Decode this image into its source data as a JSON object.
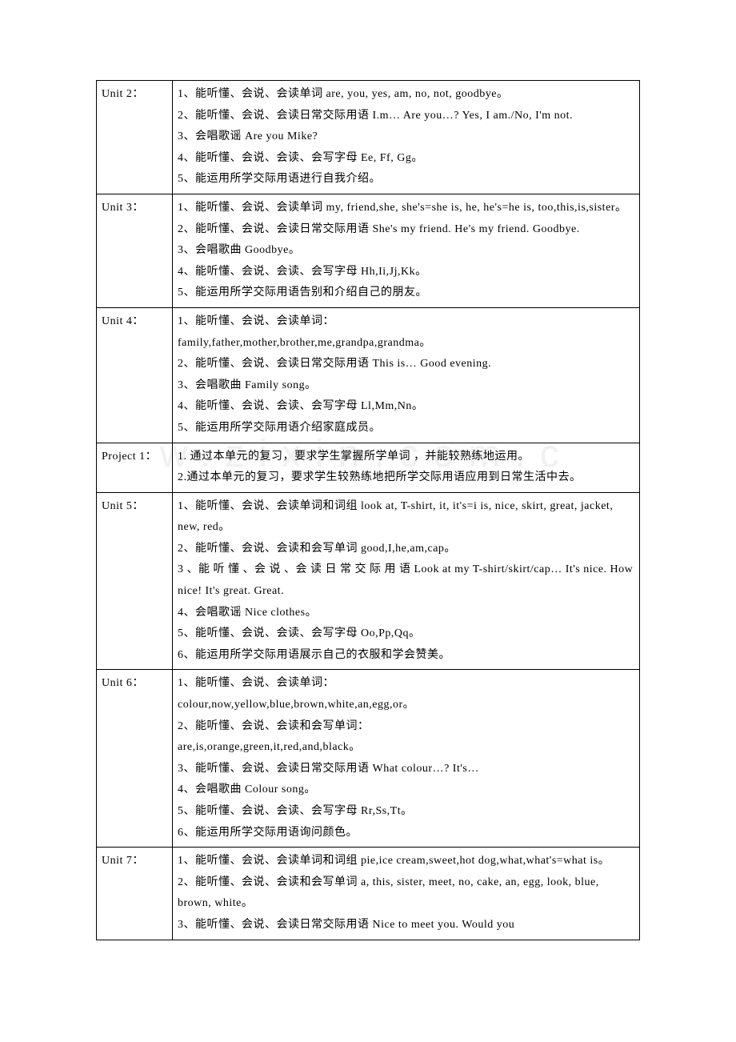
{
  "table": {
    "border_color": "#000000",
    "background_color": "#ffffff",
    "text_color": "#000000",
    "font_size": 14,
    "col_unit_width": 82,
    "rows": [
      {
        "unit": "Unit 2：",
        "content": "1、能听懂、会说、会读单词 are, you, yes, am, no, not, goodbye。\n2、能听懂、会说、会读日常交际用语 I.m… Are you…? Yes, I am./No, I'm not.\n3、会唱歌谣 Are you Mike?\n4、能听懂、会说、会读、会写字母 Ee, Ff, Gg。\n5、能运用所学交际用语进行自我介绍。"
      },
      {
        "unit": "Unit 3：",
        "content": "1、能听懂、会说、会读单词 my, friend,she, she's=she is, he, he's=he is, too,this,is,sister。\n2、能听懂、会说、会读日常交际用语 She's my friend. He's my friend. Goodbye.\n3、会唱歌曲 Goodbye。\n4、能听懂、会说、会读、会写字母 Hh,Ii,Jj,Kk。\n5、能运用所学交际用语告别和介绍自己的朋友。"
      },
      {
        "unit": "Unit 4：",
        "content": "1、能听懂、会说、会读单词：\n family,father,mother,brother,me,grandpa,grandma。\n2、能听懂、会说、会读日常交际用语 This is… Good evening.\n3、会唱歌曲 Family song。\n4、能听懂、会说、会读、会写字母 Ll,Mm,Nn。\n5、能运用所学交际用语介绍家庭成员。"
      },
      {
        "unit": "Project 1：",
        "content": "1. 通过本单元的复习，要求学生掌握所学单词 ，并能较熟练地运用。\n2.通过本单元的复习，要求学生较熟练地把所学交际用语应用到日常生活中去。"
      },
      {
        "unit": "Unit 5：",
        "content": "1、能听懂、会说、会读单词和词组 look at, T-shirt, it, it's=i is, nice, skirt, great, jacket, new, red。\n2、能听懂、会说、会读和会写单词 good,I,he,am,cap。\n3 、能 听 懂 、会 说 、会 读 日 常 交 际 用 语 Look at my T-shirt/skirt/cap… It's nice. How nice! It's great. Great.\n4、会唱歌谣 Nice clothes。\n5、能听懂、会说、会读、会写字母 Oo,Pp,Qq。\n6、能运用所学交际用语展示自己的衣服和学会赞美。"
      },
      {
        "unit": "Unit 6：",
        "content": "1、能听懂、会说、会读单词：\ncolour,now,yellow,blue,brown,white,an,egg,or。\n2、能听懂、会说、会读和会写单词：\n are,is,orange,green,it,red,and,black。\n3、能听懂、会说、会读日常交际用语 What colour…? It's…\n4、会唱歌曲 Colour song。\n5、能听懂、会说、会读、会写字母 Rr,Ss,Tt。\n6、能运用所学交际用语询问颜色。"
      },
      {
        "unit": "Unit 7：",
        "content": "1、能听懂、会说、会读单词和词组 pie,ice cream,sweet,hot dog,what,what's=what is。\n2、能听懂、会说、会读和会写单词 a, this, sister, meet, no, cake, an, egg, look, blue, brown, white。\n3、能听懂、会说、会读日常交际用语 Nice to meet you. Would you"
      }
    ]
  },
  "watermark": {
    "text": "w.zixin.com.c",
    "color": "#f0f0f0",
    "fontsize": 48
  }
}
